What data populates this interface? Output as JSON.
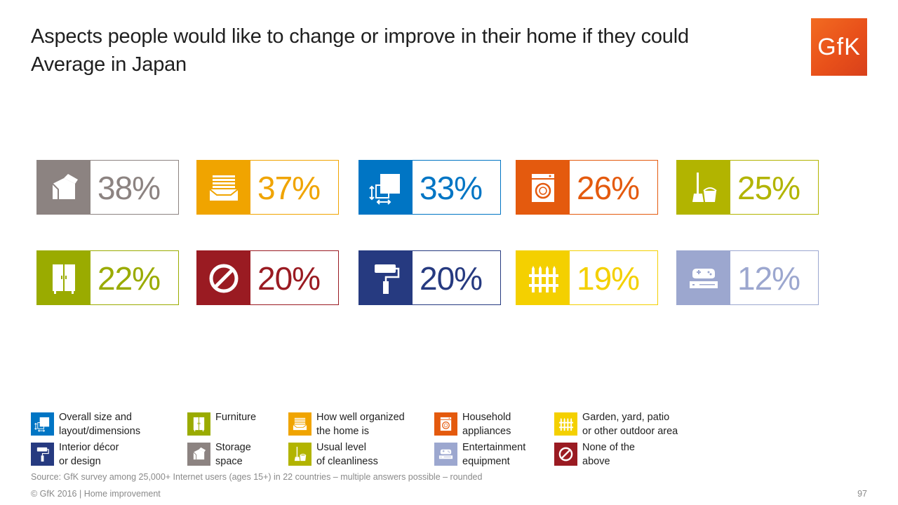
{
  "title": {
    "line1": "Aspects people would like to change or improve in their home if they could",
    "line2": "Average in Japan"
  },
  "logo_text": "GfK",
  "chart_data": {
    "type": "table",
    "unit": "%",
    "categories": [
      "Storage space",
      "How well organized the home is",
      "Overall size and layout/dimensions",
      "Household appliances",
      "Usual level of cleanliness",
      "Furniture",
      "None of the above",
      "Interior décor or design",
      "Garden, yard, patio or other outdoor area",
      "Entertainment equipment"
    ],
    "values": [
      38,
      37,
      33,
      26,
      25,
      22,
      20,
      20,
      19,
      12
    ],
    "value_labels": [
      "38%",
      "37%",
      "33%",
      "26%",
      "25%",
      "22%",
      "20%",
      "20%",
      "19%",
      "12%"
    ],
    "colors": [
      "#8c8381",
      "#f0a400",
      "#0075c4",
      "#e45a0e",
      "#b2b400",
      "#9aab00",
      "#9a1b22",
      "#263a80",
      "#f4d000",
      "#9ca7cf"
    ],
    "icons": [
      "box-icon",
      "drawer-icon",
      "layout-icon",
      "washing-machine-icon",
      "broom-bucket-icon",
      "wardrobe-icon",
      "none-icon",
      "paint-roller-icon",
      "fence-icon",
      "game-console-icon"
    ]
  },
  "legend": [
    {
      "line1": "Overall size and",
      "line2": "layout/dimensions",
      "color": "#0075c4",
      "icon": "layout-icon"
    },
    {
      "line1": "Furniture",
      "line2": "",
      "color": "#9aab00",
      "icon": "wardrobe-icon"
    },
    {
      "line1": "How well organized",
      "line2": "the home is",
      "color": "#f0a400",
      "icon": "drawer-icon"
    },
    {
      "line1": "Household",
      "line2": "appliances",
      "color": "#e45a0e",
      "icon": "washing-machine-icon"
    },
    {
      "line1": "Garden, yard, patio",
      "line2": "or other outdoor area",
      "color": "#f4d000",
      "icon": "fence-icon"
    },
    {
      "line1": "Interior décor",
      "line2": "or design",
      "color": "#263a80",
      "icon": "paint-roller-icon"
    },
    {
      "line1": "Storage",
      "line2": "space",
      "color": "#8c8381",
      "icon": "box-icon"
    },
    {
      "line1": "Usual level",
      "line2": "of cleanliness",
      "color": "#b2b400",
      "icon": "broom-bucket-icon"
    },
    {
      "line1": "Entertainment",
      "line2": "equipment",
      "color": "#9ca7cf",
      "icon": "game-console-icon"
    },
    {
      "line1": "None of the",
      "line2": "above",
      "color": "#9a1b22",
      "icon": "none-icon"
    }
  ],
  "source": "Source: GfK survey among 25,000+ Internet users (ages 15+) in 22 countries – multiple answers possible – rounded",
  "footer": "© GfK 2016 | Home improvement",
  "page_number": "97"
}
